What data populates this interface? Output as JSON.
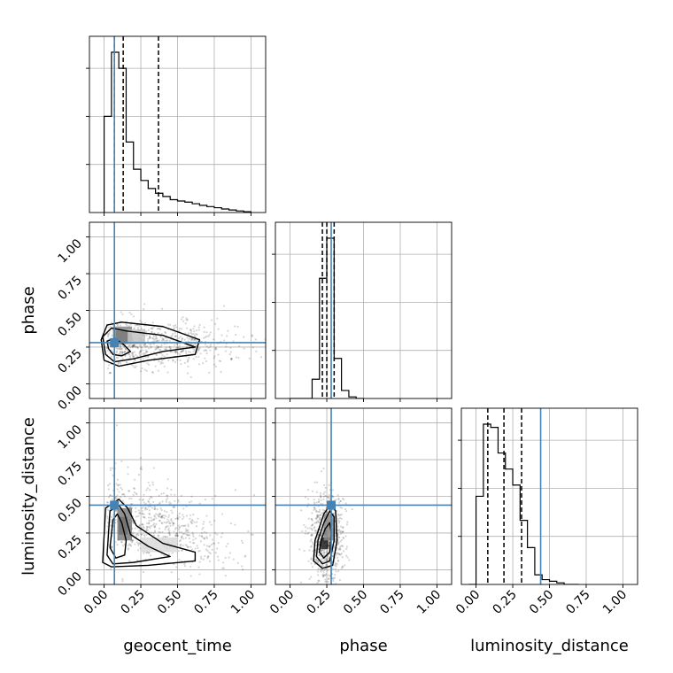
{
  "chart_data": {
    "type": "corner",
    "parameters": [
      "geocent_time",
      "phase",
      "luminosity_distance"
    ],
    "tick_values": [
      0.0,
      0.25,
      0.5,
      0.75,
      1.0
    ],
    "tick_labels": [
      "0.00",
      "0.25",
      "0.50",
      "0.75",
      "1.00"
    ],
    "xlim": [
      -0.1,
      1.1
    ],
    "ylim": [
      -0.1,
      1.1
    ],
    "grid": true,
    "truth_color": "#4682b4",
    "truths": {
      "geocent_time": 0.07,
      "phase": 0.28,
      "luminosity_distance": 0.44
    },
    "quantile_lines": {
      "geocent_time": [
        0.07,
        0.13,
        0.37
      ],
      "phase": [
        0.22,
        0.25,
        0.3
      ],
      "luminosity_distance": [
        0.08,
        0.19,
        0.31
      ]
    },
    "histograms": {
      "geocent_time": {
        "bin_edges": [
          0.0,
          0.05,
          0.1,
          0.15,
          0.2,
          0.25,
          0.3,
          0.35,
          0.4,
          0.45,
          0.5,
          0.55,
          0.6,
          0.65,
          0.7,
          0.75,
          0.8,
          0.85,
          0.9,
          0.95,
          1.0
        ],
        "counts": [
          0.6,
          1.0,
          0.9,
          0.44,
          0.27,
          0.2,
          0.15,
          0.12,
          0.1,
          0.08,
          0.072,
          0.065,
          0.055,
          0.045,
          0.037,
          0.03,
          0.022,
          0.016,
          0.01,
          0.005
        ]
      },
      "phase": {
        "bin_edges": [
          0.0,
          0.05,
          0.1,
          0.15,
          0.2,
          0.25,
          0.3,
          0.35,
          0.4,
          0.45,
          0.5
        ],
        "counts": [
          0.0,
          0.0,
          0.0,
          0.12,
          0.75,
          1.0,
          0.25,
          0.05,
          0.01,
          0.0
        ]
      },
      "luminosity_distance": {
        "bin_edges": [
          -0.05,
          0.0,
          0.05,
          0.1,
          0.15,
          0.2,
          0.25,
          0.3,
          0.35,
          0.4,
          0.45,
          0.5,
          0.55,
          0.6,
          0.65,
          0.7
        ],
        "counts": [
          0.0,
          0.55,
          1.0,
          0.98,
          0.82,
          0.72,
          0.62,
          0.4,
          0.23,
          0.06,
          0.03,
          0.02,
          0.01,
          0.0,
          0.0
        ]
      }
    },
    "contours": [
      {
        "x": "geocent_time",
        "y": "phase",
        "levels": [
          [
            [
              0.03,
              0.24
            ],
            [
              0.06,
              0.2
            ],
            [
              0.12,
              0.19
            ],
            [
              0.18,
              0.22
            ],
            [
              0.13,
              0.27
            ],
            [
              0.07,
              0.31
            ],
            [
              0.02,
              0.29
            ]
          ],
          [
            [
              0.01,
              0.2
            ],
            [
              0.07,
              0.15
            ],
            [
              0.2,
              0.17
            ],
            [
              0.4,
              0.22
            ],
            [
              0.62,
              0.25
            ],
            [
              0.4,
              0.33
            ],
            [
              0.15,
              0.36
            ],
            [
              0.05,
              0.38
            ],
            [
              -0.01,
              0.32
            ]
          ],
          [
            [
              0.0,
              0.16
            ],
            [
              0.1,
              0.12
            ],
            [
              0.3,
              0.16
            ],
            [
              0.62,
              0.2
            ],
            [
              0.65,
              0.3
            ],
            [
              0.4,
              0.39
            ],
            [
              0.12,
              0.42
            ],
            [
              0.02,
              0.4
            ],
            [
              -0.02,
              0.3
            ]
          ]
        ],
        "density_cells": [
          {
            "x": 0.08,
            "y": 0.28,
            "w": 0.09,
            "h": 0.08,
            "shade": 0.9
          },
          {
            "x": 0.06,
            "y": 0.27,
            "w": 0.13,
            "h": 0.12,
            "shade": 0.5
          },
          {
            "x": 0.16,
            "y": 0.27,
            "w": 0.12,
            "h": 0.1,
            "shade": 0.25
          }
        ]
      },
      {
        "x": "geocent_time",
        "y": "luminosity_distance",
        "levels": [
          [
            [
              0.04,
              0.15
            ],
            [
              0.08,
              0.08
            ],
            [
              0.14,
              0.1
            ],
            [
              0.15,
              0.2
            ],
            [
              0.12,
              0.32
            ],
            [
              0.09,
              0.38
            ],
            [
              0.06,
              0.34
            ]
          ],
          [
            [
              0.02,
              0.1
            ],
            [
              0.06,
              0.04
            ],
            [
              0.2,
              0.05
            ],
            [
              0.45,
              0.09
            ],
            [
              0.3,
              0.16
            ],
            [
              0.18,
              0.24
            ],
            [
              0.14,
              0.38
            ],
            [
              0.1,
              0.44
            ],
            [
              0.04,
              0.4
            ]
          ],
          [
            [
              -0.01,
              0.05
            ],
            [
              0.05,
              0.02
            ],
            [
              0.3,
              0.03
            ],
            [
              0.62,
              0.06
            ],
            [
              0.62,
              0.12
            ],
            [
              0.4,
              0.18
            ],
            [
              0.22,
              0.3
            ],
            [
              0.16,
              0.42
            ],
            [
              0.1,
              0.48
            ],
            [
              0.01,
              0.42
            ]
          ]
        ],
        "density_cells": [
          {
            "x": 0.1,
            "y": 0.24,
            "w": 0.06,
            "h": 0.12,
            "shade": 0.95
          },
          {
            "x": 0.09,
            "y": 0.2,
            "w": 0.1,
            "h": 0.22,
            "shade": 0.55
          },
          {
            "x": 0.25,
            "y": 0.12,
            "w": 0.25,
            "h": 0.1,
            "shade": 0.15
          }
        ]
      },
      {
        "x": "phase",
        "y": "luminosity_distance",
        "levels": [
          [
            [
              0.2,
              0.12
            ],
            [
              0.23,
              0.08
            ],
            [
              0.27,
              0.12
            ],
            [
              0.28,
              0.25
            ],
            [
              0.27,
              0.32
            ],
            [
              0.24,
              0.28
            ],
            [
              0.21,
              0.2
            ]
          ],
          [
            [
              0.18,
              0.09
            ],
            [
              0.22,
              0.04
            ],
            [
              0.27,
              0.06
            ],
            [
              0.3,
              0.2
            ],
            [
              0.3,
              0.36
            ],
            [
              0.27,
              0.4
            ],
            [
              0.23,
              0.32
            ],
            [
              0.19,
              0.2
            ]
          ],
          [
            [
              0.16,
              0.06
            ],
            [
              0.22,
              0.01
            ],
            [
              0.29,
              0.03
            ],
            [
              0.32,
              0.2
            ],
            [
              0.31,
              0.4
            ],
            [
              0.28,
              0.45
            ],
            [
              0.23,
              0.38
            ],
            [
              0.17,
              0.2
            ]
          ]
        ],
        "density_cells": [
          {
            "x": 0.21,
            "y": 0.14,
            "w": 0.05,
            "h": 0.08,
            "shade": 0.95
          },
          {
            "x": 0.23,
            "y": 0.2,
            "w": 0.07,
            "h": 0.18,
            "shade": 0.5
          }
        ]
      }
    ]
  }
}
